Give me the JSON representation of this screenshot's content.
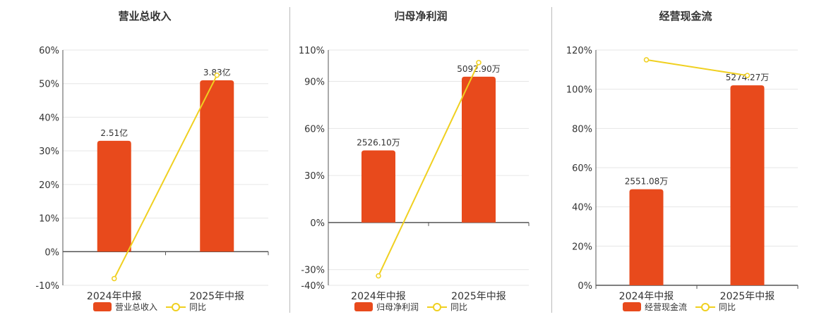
{
  "colors": {
    "bar": "#e84a1c",
    "line": "#f0d020",
    "grid": "#e6e6e6",
    "axis": "#555555",
    "text": "#333333"
  },
  "chart_data": [
    {
      "type": "bar",
      "title": "营业总收入",
      "categories": [
        "2024年中报",
        "2025年中报"
      ],
      "series": [
        {
          "name": "营业总收入",
          "values": [
            33,
            51
          ],
          "labels": [
            "2.51亿",
            "3.83亿"
          ]
        },
        {
          "name": "同比",
          "type": "line",
          "values": [
            -8,
            52.5
          ]
        }
      ],
      "ylim": [
        -10,
        60
      ],
      "yticks": [
        -10,
        0,
        10,
        20,
        30,
        40,
        50,
        60
      ],
      "ytick_labels": [
        "-10%",
        "0%",
        "10%",
        "20%",
        "30%",
        "40%",
        "50%",
        "60%"
      ],
      "grid": true,
      "legend": "bottom"
    },
    {
      "type": "bar",
      "title": "归母净利润",
      "categories": [
        "2024年中报",
        "2025年中报"
      ],
      "series": [
        {
          "name": "归母净利润",
          "values": [
            46,
            93
          ],
          "labels": [
            "2526.10万",
            "5092.90万"
          ]
        },
        {
          "name": "同比",
          "type": "line",
          "values": [
            -34,
            102
          ]
        }
      ],
      "ylim": [
        -40,
        110
      ],
      "yticks": [
        -40,
        -30,
        0,
        30,
        60,
        90,
        110
      ],
      "ytick_labels": [
        "-40%",
        "-30%",
        "0%",
        "30%",
        "60%",
        "90%",
        "110%"
      ],
      "grid": true,
      "legend": "bottom"
    },
    {
      "type": "bar",
      "title": "经营现金流",
      "categories": [
        "2024年中报",
        "2025年中报"
      ],
      "series": [
        {
          "name": "经营现金流",
          "values": [
            49,
            102
          ],
          "labels": [
            "2551.08万",
            "5274.27万"
          ]
        },
        {
          "name": "同比",
          "type": "line",
          "values": [
            115,
            107
          ]
        }
      ],
      "ylim": [
        0,
        120
      ],
      "yticks": [
        0,
        20,
        40,
        60,
        80,
        100,
        120
      ],
      "ytick_labels": [
        "0%",
        "20%",
        "40%",
        "60%",
        "80%",
        "100%",
        "120%"
      ],
      "grid": true,
      "legend": "bottom"
    }
  ]
}
